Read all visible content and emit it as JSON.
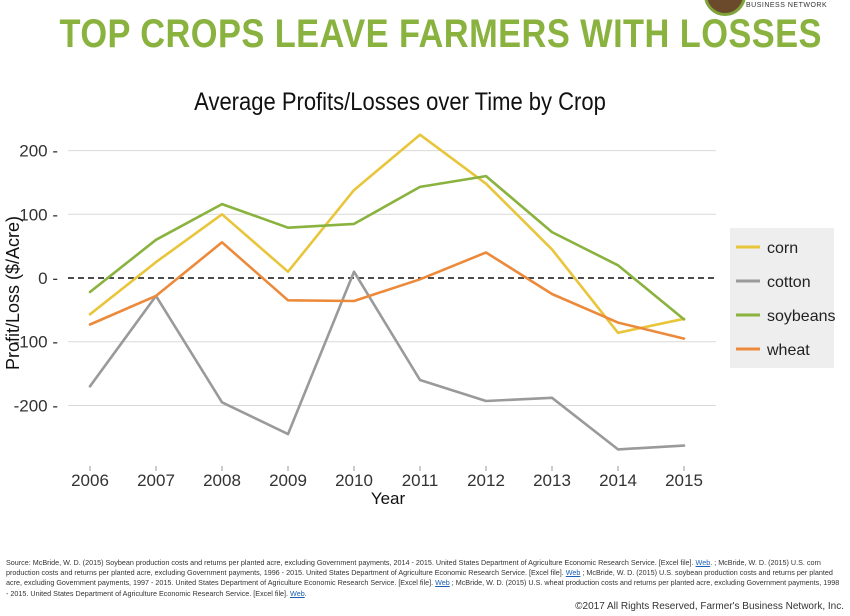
{
  "headline": "TOP CROPS LEAVE FARMERS WITH LOSSES",
  "logo_text": "BUSINESS NETWORK",
  "colors": {
    "headline": "#8ab23f",
    "corn": "#e8c53a",
    "cotton": "#9a9a9a",
    "soybeans": "#8ab23f",
    "wheat": "#ec8a3c",
    "grid": "#d9d9d9",
    "legend_bg": "#eeeeee"
  },
  "chart_data": {
    "type": "line",
    "title": "Average Profits/Losses over Time by Crop",
    "xlabel": "Year",
    "ylabel": "Profit/Loss ($/Acre)",
    "x": [
      2006,
      2007,
      2008,
      2009,
      2010,
      2011,
      2012,
      2013,
      2014,
      2015
    ],
    "x_ticks": [
      "2006",
      "2007",
      "2008",
      "2009",
      "2010",
      "2011",
      "2012",
      "2013",
      "2014",
      "2015"
    ],
    "y_ticks": [
      -200,
      -100,
      0,
      100,
      200
    ],
    "y_tick_labels": [
      "-200",
      "-100",
      "0",
      "100",
      "200"
    ],
    "ylim": [
      -295,
      248
    ],
    "reference_line": {
      "y": 0,
      "style": "dashed"
    },
    "grid": true,
    "legend_position": "right",
    "series": [
      {
        "name": "corn",
        "values": [
          -57,
          25,
          100,
          10,
          138,
          225,
          148,
          45,
          -86,
          -64
        ]
      },
      {
        "name": "cotton",
        "values": [
          -170,
          -28,
          -195,
          -245,
          10,
          -160,
          -193,
          -188,
          -269,
          -263
        ]
      },
      {
        "name": "soybeans",
        "values": [
          -22,
          60,
          116,
          79,
          85,
          143,
          160,
          72,
          20,
          -65
        ]
      },
      {
        "name": "wheat",
        "values": [
          -73,
          -28,
          56,
          -35,
          -36,
          -2,
          40,
          -25,
          -70,
          -95
        ]
      }
    ]
  },
  "source": {
    "segments": [
      {
        "text": "Source: McBride, W. D. (2015) Soybean production costs and returns per planted acre, excluding Government payments, 2014 - 2015. United States Department of Agriculture Economic Research Service. [Excel file]. ",
        "link": false
      },
      {
        "text": "Web",
        "link": true
      },
      {
        "text": ". ; McBride, W. D. (2015) U.S. corn production costs and returns per planted acre, excluding Government payments, 1996 - 2015. United States Department of Agriculture Economic Research Service. [Excel file]. ",
        "link": false
      },
      {
        "text": "Web",
        "link": true
      },
      {
        "text": " ; McBride, W. D. (2015) U.S. soybean production costs and returns per planted acre, excluding Government payments, 1997 - 2015. United States Department of Agriculture Economic Research Service. [Excel file]. ",
        "link": false
      },
      {
        "text": "Web",
        "link": true
      },
      {
        "text": " ; McBride, W. D. (2015) U.S. wheat production costs and returns per planted acre, excluding Government payments, 1998 - 2015. United States Department of Agriculture Economic Research Service. [Excel file]. ",
        "link": false
      },
      {
        "text": "Web",
        "link": true
      },
      {
        "text": ".",
        "link": false
      }
    ]
  },
  "copyright": "©2017 All Rights Reserved, Farmer's Business Network, Inc."
}
